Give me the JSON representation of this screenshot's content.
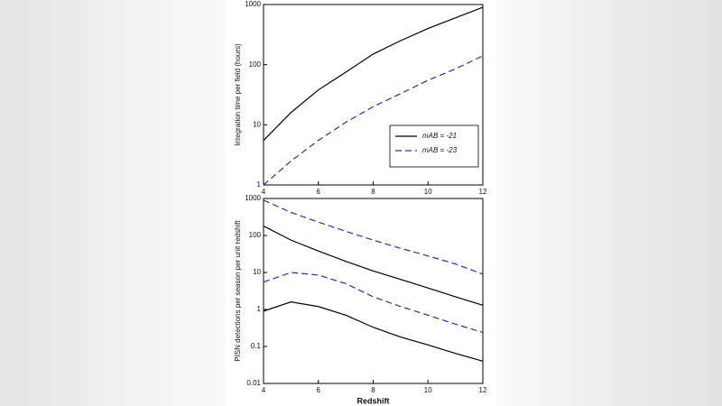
{
  "chart_data": [
    {
      "type": "line",
      "y_label": "Integration time per field (hours)",
      "x": [
        4,
        5,
        6,
        7,
        8,
        9,
        10,
        11,
        12
      ],
      "xlim": [
        4,
        12
      ],
      "xticks": [
        4,
        6,
        8,
        10,
        12
      ],
      "ylim": [
        1,
        1000
      ],
      "yticks": [
        1,
        10,
        100,
        1000
      ],
      "y_scale": "log",
      "legend_position": "lower right",
      "series": [
        {
          "name": "mAB = -21",
          "color": "#000000",
          "linestyle": "solid",
          "values": [
            5.5,
            16,
            38,
            75,
            150,
            250,
            400,
            600,
            900
          ]
        },
        {
          "name": "mAB = -23",
          "color": "#2b2bb8",
          "linestyle": "dashed",
          "values": [
            1,
            2.5,
            5.5,
            11,
            20,
            33,
            55,
            85,
            140
          ]
        }
      ]
    },
    {
      "type": "line",
      "x_label": "Redshift",
      "y_label": "PISN detections per season per unit redshift",
      "x": [
        4,
        5,
        6,
        7,
        8,
        9,
        10,
        11,
        12
      ],
      "xlim": [
        4,
        12
      ],
      "xticks": [
        4,
        6,
        8,
        10,
        12
      ],
      "ylim": [
        0.01,
        1000
      ],
      "yticks": [
        0.01,
        0.1,
        1,
        10,
        100,
        1000
      ],
      "y_scale": "log",
      "series": [
        {
          "color": "#2b2bb8",
          "linestyle": "dashed",
          "values": [
            900,
            420,
            230,
            130,
            75,
            45,
            28,
            17,
            9
          ]
        },
        {
          "color": "#000000",
          "linestyle": "solid",
          "values": [
            180,
            75,
            38,
            20,
            11,
            6.5,
            3.8,
            2.2,
            1.3
          ]
        },
        {
          "color": "#2b2bb8",
          "linestyle": "dashed",
          "values": [
            5.5,
            10,
            8.5,
            5,
            2.2,
            1.2,
            0.7,
            0.4,
            0.24
          ]
        },
        {
          "color": "#000000",
          "linestyle": "solid",
          "values": [
            0.9,
            1.6,
            1.2,
            0.7,
            0.33,
            0.18,
            0.11,
            0.065,
            0.04
          ]
        }
      ]
    }
  ]
}
